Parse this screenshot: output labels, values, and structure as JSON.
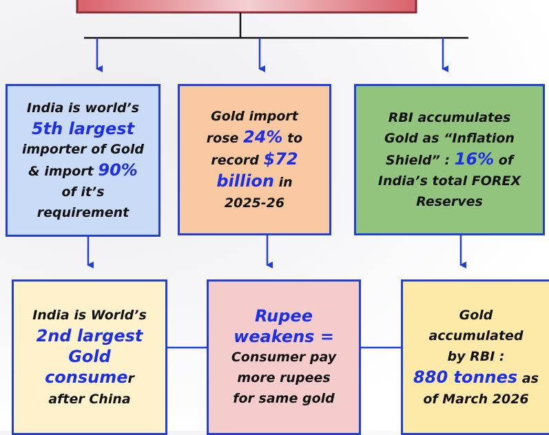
{
  "boxes": [
    {
      "lines": [
        [
          "India is world’s"
        ],
        [
          "5th largest"
        ],
        [
          "importer of Gold"
        ],
        [
          "& import ",
          "90%"
        ],
        [
          "of it’s"
        ],
        [
          "requirement"
        ]
      ]
    },
    {
      "lines": [
        [
          "Gold import"
        ],
        [
          "rose ",
          "24%",
          " to"
        ],
        [
          "record ",
          "$72"
        ],
        [
          "billion",
          " in"
        ],
        [
          "2025-26"
        ]
      ]
    },
    {
      "lines": [
        [
          "RBI accumulates"
        ],
        [
          "Gold as “Inflation"
        ],
        [
          "Shield” : ",
          "16%",
          " of"
        ],
        [
          "India’s total FOREX"
        ],
        [
          "Reserves"
        ]
      ]
    },
    {
      "lines": [
        [
          "India is World’s"
        ],
        [
          "2nd largest"
        ],
        [
          "Gold"
        ],
        [
          "consume",
          "r"
        ],
        [
          "after China"
        ]
      ]
    },
    {
      "lines": [
        [
          "Rupee"
        ],
        [
          "weakens ="
        ],
        [
          "Consumer pay"
        ],
        [
          "more rupees"
        ],
        [
          "for same gold"
        ]
      ]
    },
    {
      "lines": [
        [
          "Gold"
        ],
        [
          "accumulated"
        ],
        [
          "by RBI :"
        ],
        [
          "880 tonnes",
          " as"
        ],
        [
          "of March 2026"
        ]
      ]
    }
  ]
}
